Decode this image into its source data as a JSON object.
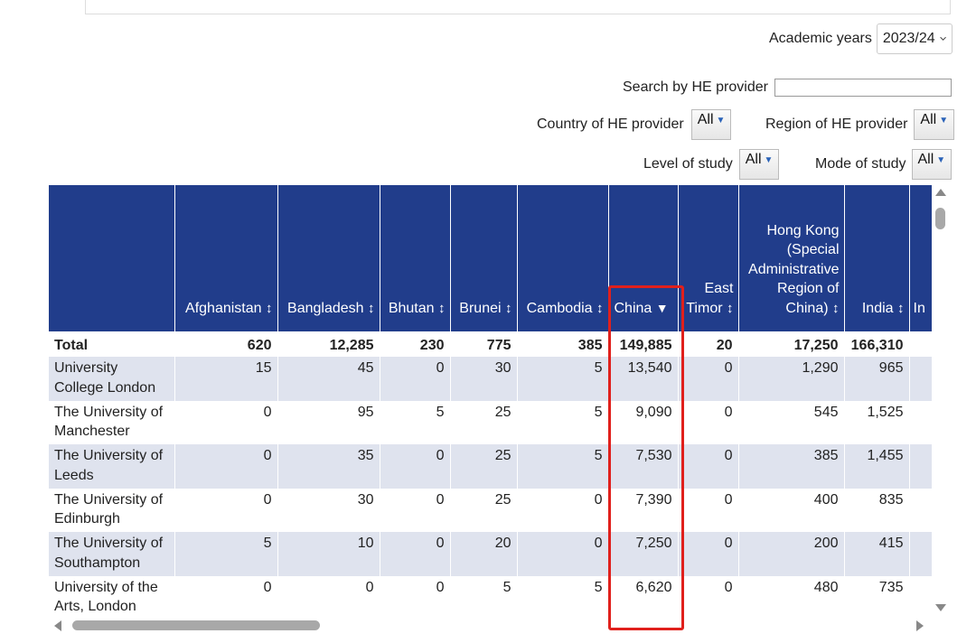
{
  "filters": {
    "academic_years_label": "Academic years",
    "academic_years_value": "2023/24",
    "search_label": "Search by HE provider",
    "search_value": "",
    "country_label": "Country of HE provider",
    "country_value": "All",
    "region_label": "Region of HE provider",
    "region_value": "All",
    "level_label": "Level of study",
    "level_value": "All",
    "mode_label": "Mode of study",
    "mode_value": "All"
  },
  "table": {
    "columns": [
      {
        "label": "",
        "sort": ""
      },
      {
        "label": "Afghanistan",
        "sort": "↕"
      },
      {
        "label": "Bangladesh",
        "sort": "↕"
      },
      {
        "label": "Bhutan",
        "sort": "↕"
      },
      {
        "label": "Brunei",
        "sort": "↕"
      },
      {
        "label": "Cambodia",
        "sort": "↕"
      },
      {
        "label": "China",
        "sort": "▼"
      },
      {
        "label": "East Timor",
        "sort": "↕"
      },
      {
        "label": "Hong Kong (Special Administrative Region of China)",
        "sort": "↕"
      },
      {
        "label": "India",
        "sort": "↕"
      },
      {
        "label": "In",
        "sort": ""
      }
    ],
    "total": {
      "name": "Total",
      "values": [
        "620",
        "12,285",
        "230",
        "775",
        "385",
        "149,885",
        "20",
        "17,250",
        "166,310",
        ""
      ]
    },
    "rows": [
      {
        "name": "University College London",
        "values": [
          "15",
          "45",
          "0",
          "30",
          "5",
          "13,540",
          "0",
          "1,290",
          "965",
          ""
        ]
      },
      {
        "name": "The University of Manchester",
        "values": [
          "0",
          "95",
          "5",
          "25",
          "5",
          "9,090",
          "0",
          "545",
          "1,525",
          ""
        ]
      },
      {
        "name": "The University of Leeds",
        "values": [
          "0",
          "35",
          "0",
          "25",
          "5",
          "7,530",
          "0",
          "385",
          "1,455",
          ""
        ]
      },
      {
        "name": "The University of Edinburgh",
        "values": [
          "0",
          "30",
          "0",
          "25",
          "0",
          "7,390",
          "0",
          "400",
          "835",
          ""
        ]
      },
      {
        "name": "The University of Southampton",
        "values": [
          "5",
          "10",
          "0",
          "20",
          "0",
          "7,250",
          "0",
          "200",
          "415",
          ""
        ]
      },
      {
        "name": "University of the Arts, London",
        "values": [
          "0",
          "0",
          "0",
          "5",
          "5",
          "6,620",
          "0",
          "480",
          "735",
          ""
        ]
      }
    ]
  },
  "colors": {
    "header_bg": "#213d8b",
    "row_shade": "#dfe3ee",
    "highlight": "#e0201c"
  },
  "icons": {
    "dropdown": "chevron-down-icon",
    "filter_dropdown": "triangle-down-icon",
    "sort": "sort-icon",
    "sorted_desc": "sort-desc-icon"
  }
}
